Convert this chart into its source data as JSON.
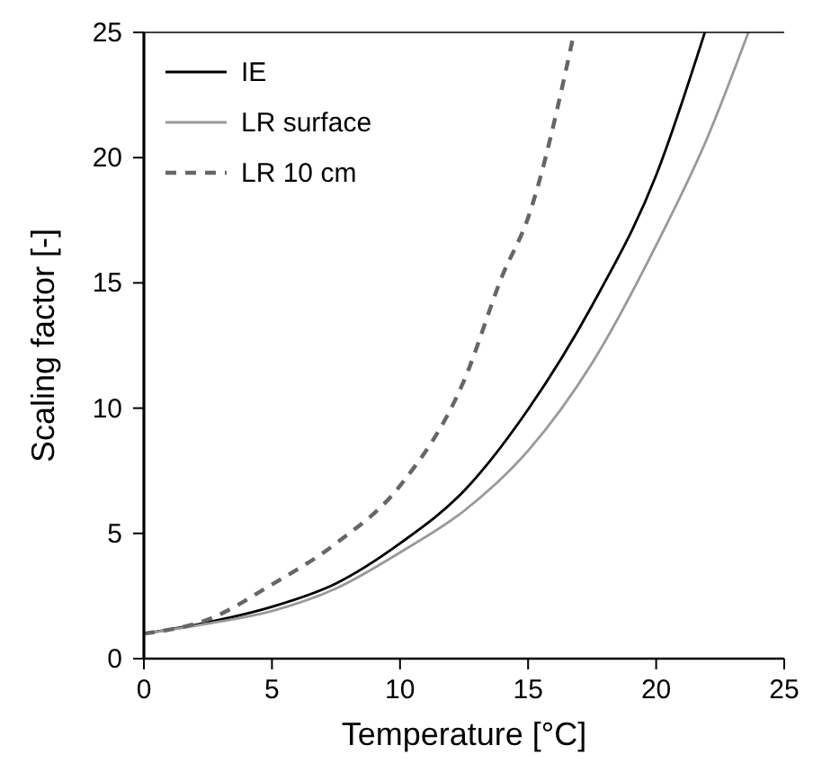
{
  "chart_data": {
    "type": "line",
    "xlabel": "Temperature [°C]",
    "ylabel": "Scaling factor [-]",
    "xlim": [
      0,
      25
    ],
    "ylim": [
      0,
      25
    ],
    "xticks": [
      0,
      5,
      10,
      15,
      20,
      25
    ],
    "yticks": [
      0,
      5,
      10,
      15,
      20,
      25
    ],
    "grid": false,
    "legend": "top left",
    "series": [
      {
        "name": "IE",
        "color": "#000000",
        "line_style": "solid",
        "x": [
          0,
          2.5,
          5,
          7.5,
          10,
          12.5,
          15,
          17.5,
          20,
          21.9
        ],
        "values": [
          1.0,
          1.45,
          2.07,
          3.0,
          4.6,
          6.7,
          9.95,
          14.1,
          19.3,
          25
        ]
      },
      {
        "name": "LR surface",
        "color": "#999999",
        "line_style": "solid",
        "x": [
          0,
          2.5,
          5,
          7.5,
          10,
          12.5,
          15,
          17.5,
          20,
          22,
          23.6
        ],
        "values": [
          1.0,
          1.4,
          1.9,
          2.8,
          4.24,
          5.9,
          8.3,
          11.8,
          16.5,
          20.8,
          25
        ]
      },
      {
        "name": "LR 10 cm",
        "color": "#666666",
        "line_style": "dashed",
        "x": [
          0,
          2.5,
          5,
          7.5,
          10,
          12.5,
          14,
          15,
          16.8
        ],
        "values": [
          1.0,
          1.56,
          2.96,
          4.6,
          6.9,
          11.1,
          15.3,
          17.6,
          25
        ]
      }
    ]
  }
}
